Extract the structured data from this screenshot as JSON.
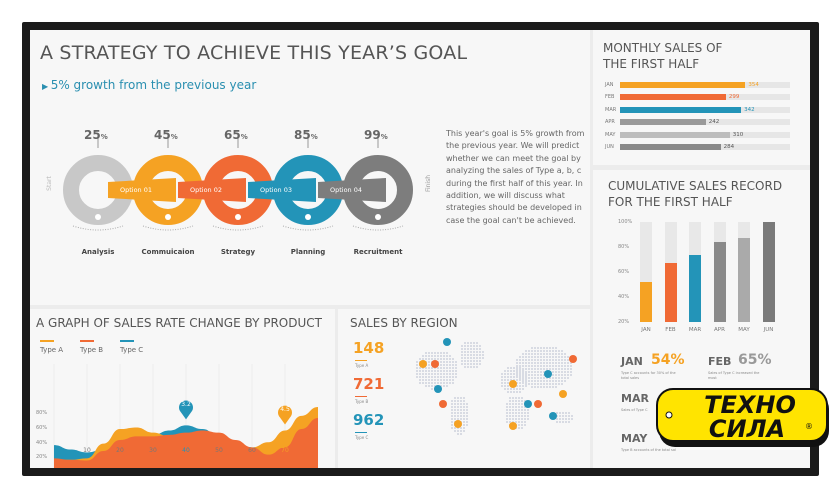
{
  "main": {
    "title": "A STRATEGY TO ACHIEVE THIS YEAR’S GOAL",
    "subtitle": "5% growth from the previous year",
    "start_label": "Start",
    "finish_label": "Finish",
    "steps": [
      {
        "percent": "25",
        "unit": "%",
        "label": "Analysis",
        "option": "",
        "color": "#c8c8c8",
        "icon": "money-bag-icon"
      },
      {
        "percent": "45",
        "unit": "%",
        "label": "Commuicaion",
        "option": "Option 01",
        "color": "#f5a223",
        "icon": "person-icon"
      },
      {
        "percent": "65",
        "unit": "%",
        "label": "Strategy",
        "option": "Option 02",
        "color": "#f06a35",
        "icon": "clock-icon"
      },
      {
        "percent": "85",
        "unit": "%",
        "label": "Planning",
        "option": "Option 03",
        "color": "#2394b8",
        "icon": "calendar-icon"
      },
      {
        "percent": "99",
        "unit": "%",
        "label": "Recruitment",
        "option": "Option 04",
        "color": "#7d7d7d",
        "icon": "lightbulb-icon"
      }
    ],
    "description": "This year's goal is 5% growth from the previous year. We will predict whether we can meet the goal by analyzing the sales of Type a, b, c during the first half of this year. In addition, we will discuss what strategies should be developed in case the goal can't be achieved."
  },
  "chart_data": [
    {
      "type": "bar",
      "title": "MONTHLY SALES OF THE FIRST HALF",
      "orientation": "horizontal",
      "categories": [
        "JAN",
        "FEB",
        "MAR",
        "APR",
        "MAY",
        "JUN"
      ],
      "values": [
        354,
        299,
        342,
        242,
        310,
        284
      ],
      "labels": [
        "354",
        "299",
        "342",
        "242",
        "310",
        "284"
      ],
      "colors": [
        "#f5a223",
        "#f06a35",
        "#2394b8",
        "#9a9a9a",
        "#bdbdbd",
        "#8a8a8a"
      ]
    },
    {
      "type": "bar",
      "title": "CUMULATIVE SALES RECORD FOR THE FIRST HALF",
      "categories": [
        "JAN",
        "FEB",
        "MAR",
        "APR",
        "MAY",
        "JUN"
      ],
      "values": [
        52,
        67,
        74,
        84,
        87,
        100
      ],
      "ylim": [
        20,
        100
      ],
      "yticks": [
        "100%",
        "80%",
        "60%",
        "40%",
        "20%"
      ],
      "colors": [
        "#f5a223",
        "#f06a35",
        "#2394b8",
        "#8a8a8a",
        "#aaaaaa",
        "#7a7a7a"
      ]
    },
    {
      "type": "area",
      "title": "A GRAPH OF SALES RATE CHANGE BY PRODUCT",
      "x": [
        0,
        5,
        10,
        15,
        20,
        25,
        30,
        35,
        40,
        45,
        50,
        55,
        60,
        65,
        70,
        75,
        80
      ],
      "series": [
        {
          "name": "Type C",
          "color": "#2394b8",
          "values": [
            38,
            32,
            28,
            32,
            48,
            52,
            52,
            58,
            65,
            60,
            50,
            38,
            30,
            30,
            40,
            55,
            65
          ]
        },
        {
          "name": "Type A",
          "color": "#f5a223",
          "values": [
            18,
            18,
            20,
            40,
            60,
            62,
            55,
            50,
            52,
            55,
            50,
            40,
            35,
            42,
            58,
            78,
            90
          ]
        },
        {
          "name": "Type B",
          "color": "#f06a35",
          "values": [
            20,
            18,
            17,
            30,
            45,
            50,
            50,
            52,
            55,
            58,
            55,
            45,
            35,
            25,
            35,
            60,
            75
          ]
        }
      ],
      "xticks": [
        "10",
        "20",
        "30",
        "40",
        "50",
        "60",
        "70"
      ],
      "yticks": [
        "80%",
        "60%",
        "40%",
        "20%"
      ],
      "ylim": [
        0,
        90
      ],
      "markers": [
        {
          "x": 40,
          "label": "3.2",
          "color": "#2394b8"
        },
        {
          "x": 70,
          "label": "4.5",
          "color": "#f5a223"
        }
      ]
    }
  ],
  "summary": [
    {
      "month": "JAN",
      "value": "54%",
      "color": "#f5a223",
      "note": "Type C accounts for 30% of the total sales"
    },
    {
      "month": "FEB",
      "value": "65%",
      "color": "#999",
      "note": "Sales of Type C increased the most"
    },
    {
      "month": "MAR",
      "value": "",
      "color": "#999",
      "note": "Sales of Type C"
    },
    {
      "month": "MAY",
      "value": "",
      "color": "#999",
      "note": "Type B accounts of the total sal"
    }
  ],
  "region": {
    "title": "SALES BY REGION",
    "items": [
      {
        "value": "148",
        "label": "Type A",
        "color": "#f5a223"
      },
      {
        "value": "721",
        "label": "Type B",
        "color": "#f06a35"
      },
      {
        "value": "962",
        "label": "Type C",
        "color": "#2394b8"
      }
    ]
  },
  "logo": {
    "line1": "ТЕХНО",
    "line2": "СИЛА",
    "mark": "®",
    "colors": {
      "bg": "#ffe400",
      "text": "#111"
    }
  }
}
